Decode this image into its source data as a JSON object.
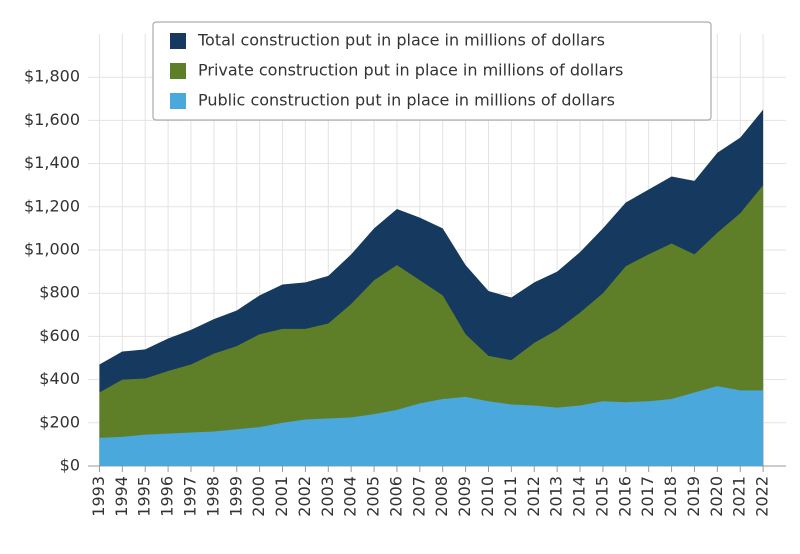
{
  "chart_data": {
    "type": "area",
    "x": [
      1993,
      1994,
      1995,
      1996,
      1997,
      1998,
      1999,
      2000,
      2001,
      2002,
      2003,
      2004,
      2005,
      2006,
      2007,
      2008,
      2009,
      2010,
      2011,
      2012,
      2013,
      2014,
      2015,
      2016,
      2017,
      2018,
      2019,
      2020,
      2021,
      2022
    ],
    "series": [
      {
        "name": "Total construction put in place in millions of dollars",
        "color": "#163a5f",
        "values": [
          470,
          530,
          540,
          590,
          630,
          680,
          720,
          790,
          840,
          850,
          880,
          980,
          1100,
          1190,
          1150,
          1100,
          930,
          810,
          780,
          850,
          900,
          990,
          1100,
          1220,
          1280,
          1340,
          1320,
          1450,
          1520,
          1650
        ]
      },
      {
        "name": "Private construction put in place in millions of dollars",
        "color": "#5e7f28",
        "values": [
          340,
          400,
          405,
          440,
          470,
          520,
          555,
          610,
          635,
          635,
          660,
          750,
          860,
          930,
          860,
          790,
          610,
          510,
          490,
          570,
          630,
          710,
          800,
          925,
          980,
          1030,
          980,
          1080,
          1170,
          1300
        ]
      },
      {
        "name": "Public construction put in place in millions of dollars",
        "color": "#4aa8dc",
        "values": [
          130,
          135,
          145,
          150,
          155,
          160,
          170,
          180,
          200,
          215,
          220,
          225,
          240,
          260,
          290,
          310,
          320,
          300,
          285,
          280,
          270,
          280,
          300,
          295,
          300,
          310,
          340,
          370,
          350,
          350
        ]
      }
    ],
    "xlim": [
      1992.5,
      2023
    ],
    "xticks": [
      1993,
      1994,
      1995,
      1996,
      1997,
      1998,
      1999,
      2000,
      2001,
      2002,
      2003,
      2004,
      2005,
      2006,
      2007,
      2008,
      2009,
      2010,
      2011,
      2012,
      2013,
      2014,
      2015,
      2016,
      2017,
      2018,
      2019,
      2020,
      2021,
      2022
    ],
    "ylim": [
      0,
      2000
    ],
    "yticks": [
      {
        "value": 0,
        "label": "$0"
      },
      {
        "value": 200,
        "label": "$200"
      },
      {
        "value": 400,
        "label": "$400"
      },
      {
        "value": 600,
        "label": "$600"
      },
      {
        "value": 800,
        "label": "$800"
      },
      {
        "value": 1000,
        "label": "$1,000"
      },
      {
        "value": 1200,
        "label": "$1,200"
      },
      {
        "value": 1400,
        "label": "$1,400"
      },
      {
        "value": 1600,
        "label": "$1,600"
      },
      {
        "value": 1800,
        "label": "$1,800"
      }
    ],
    "grid": true,
    "legend": "top"
  }
}
